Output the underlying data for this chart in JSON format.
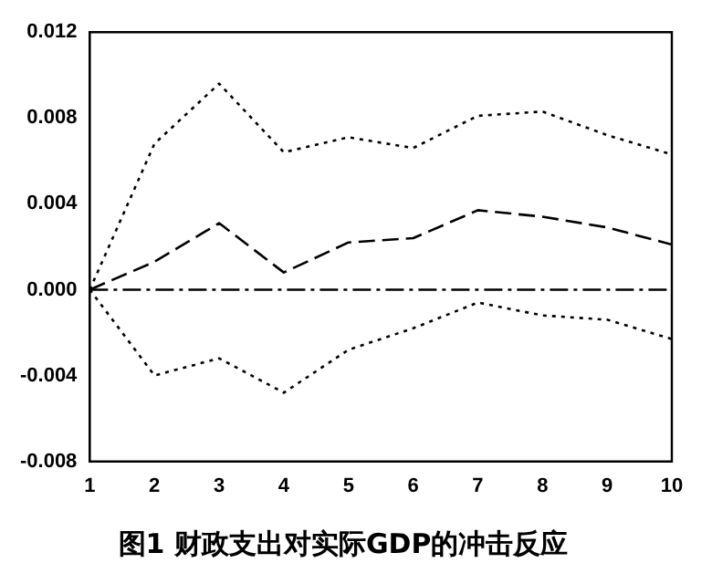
{
  "chart_data": {
    "type": "line",
    "title": "图1 财政支出对实际GDP的冲击反应",
    "x": [
      1,
      2,
      3,
      4,
      5,
      6,
      7,
      8,
      9,
      10
    ],
    "series": [
      {
        "color": "#000000",
        "line_style": "dashed",
        "values": [
          0,
          0.0013,
          0.0031,
          0.0008,
          0.0022,
          0.0024,
          0.0037,
          0.0034,
          0.0029,
          0.0021
        ]
      },
      {
        "color": "#000000",
        "line_style": "dotted",
        "values": [
          0,
          0.0068,
          0.0096,
          0.0064,
          0.0071,
          0.0066,
          0.0081,
          0.0083,
          0.0072,
          0.0063
        ]
      },
      {
        "color": "#000000",
        "line_style": "dotted",
        "values": [
          0,
          -0.004,
          -0.0032,
          -0.0048,
          -0.0028,
          -0.0018,
          -0.0006,
          -0.0012,
          -0.0014,
          -0.0023
        ]
      }
    ],
    "xlim": [
      1,
      10
    ],
    "xticks": [
      1,
      2,
      3,
      4,
      5,
      6,
      7,
      8,
      9,
      10
    ],
    "ylim": [
      -0.008,
      0.012
    ],
    "yticks": [
      {
        "value": -0.008,
        "label": "-0.008"
      },
      {
        "value": -0.004,
        "label": "-0.004"
      },
      {
        "value": 0,
        "label": "0.000"
      },
      {
        "value": 0.004,
        "label": "0.004"
      },
      {
        "value": 0.008,
        "label": "0.008"
      },
      {
        "value": 0.012,
        "label": "0.012"
      }
    ],
    "ref_lines": [
      {
        "axis": "y",
        "value": 0,
        "color": "#000000",
        "line_style": "dashed"
      }
    ],
    "grid": false,
    "legend": false,
    "marker": "none"
  }
}
